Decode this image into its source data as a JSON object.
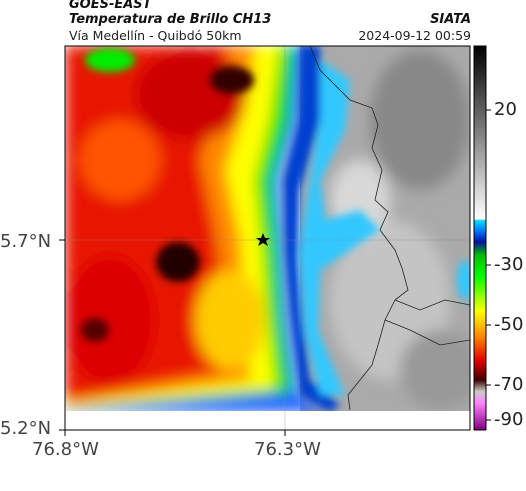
{
  "header": {
    "satellite": "GOES-EAST",
    "product": "Temperatura de Brillo CH13",
    "region": "Vía Medellín - Quibdó 50km",
    "source": "SIATA",
    "datetime": "2024-09-12 00:59"
  },
  "axes": {
    "y_ticks": [
      "5.7°N",
      "5.2°N"
    ],
    "x_ticks": [
      "76.8°W",
      "76.3°W"
    ]
  },
  "colorbar": {
    "ticks": [
      "20",
      "-30",
      "-50",
      "-70",
      "-90"
    ],
    "values": [
      20,
      -30,
      -50,
      -70,
      -90
    ],
    "colors": [
      "#000000",
      "#ffffff",
      "#00c8ff",
      "#0010a0",
      "#00d000",
      "#ffff00",
      "#ff6000",
      "#d00000",
      "#200000",
      "#ff80ff",
      "#a000a0"
    ]
  },
  "marker": {
    "icon": "star-icon"
  }
}
